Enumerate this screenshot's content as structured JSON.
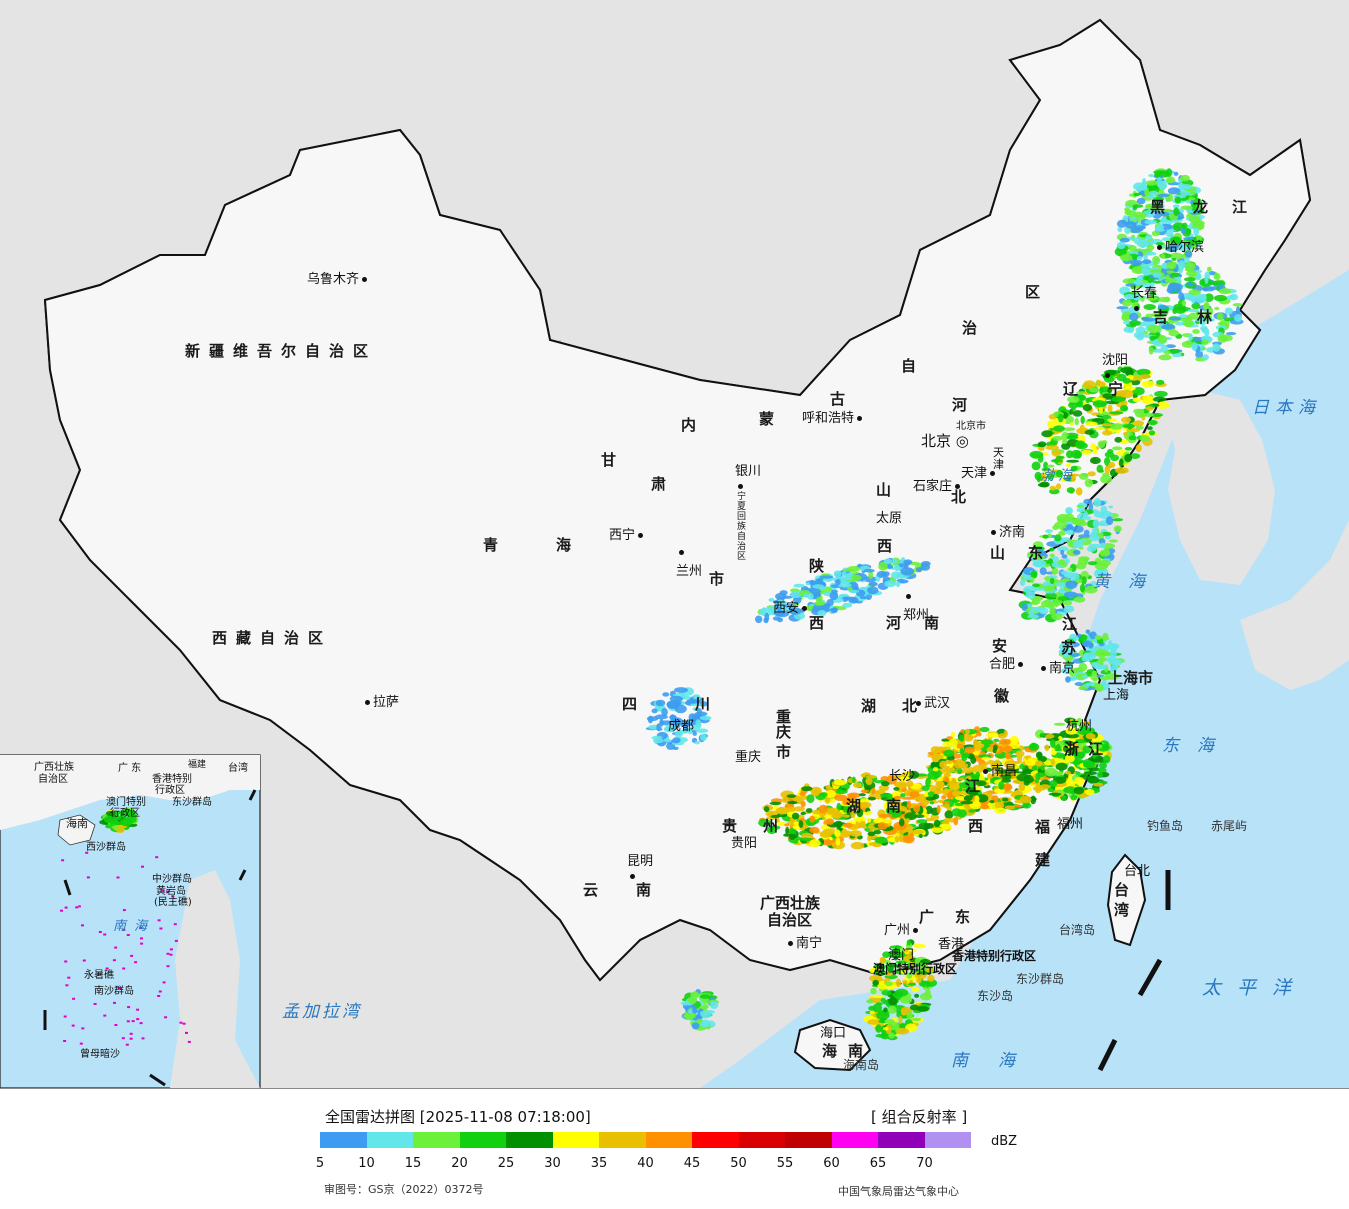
{
  "map": {
    "colors": {
      "ocean": "#b8e2f8",
      "land_outside": "#e4e4e4",
      "land_china": "#f7f7f7",
      "border": "#111111",
      "river": "#3aa0e0"
    },
    "provinces": [
      {
        "id": "xinjiang",
        "label": "新疆维吾尔自治区"
      },
      {
        "id": "tibet",
        "label": "西藏自治区"
      },
      {
        "id": "qinghai-1",
        "label": "青"
      },
      {
        "id": "qinghai-2",
        "label": "海"
      },
      {
        "id": "gansu-1",
        "label": "甘"
      },
      {
        "id": "gansu-2",
        "label": "肃"
      },
      {
        "id": "inner-mongolia-1",
        "label": "内"
      },
      {
        "id": "inner-mongolia-2",
        "label": "蒙"
      },
      {
        "id": "inner-mongolia-3",
        "label": "古"
      },
      {
        "id": "inner-mongolia-4",
        "label": "自"
      },
      {
        "id": "inner-mongolia-5",
        "label": "治"
      },
      {
        "id": "inner-mongolia-6",
        "label": "区"
      },
      {
        "id": "heilongjiang-1",
        "label": "黑"
      },
      {
        "id": "heilongjiang-2",
        "label": "龙"
      },
      {
        "id": "heilongjiang-3",
        "label": "江"
      },
      {
        "id": "jilin-1",
        "label": "吉"
      },
      {
        "id": "jilin-2",
        "label": "林"
      },
      {
        "id": "liaoning-1",
        "label": "辽"
      },
      {
        "id": "liaoning-2",
        "label": "宁"
      },
      {
        "id": "hebei-1",
        "label": "河"
      },
      {
        "id": "hebei-2",
        "label": "北"
      },
      {
        "id": "shanxi-1",
        "label": "山"
      },
      {
        "id": "shanxi-2",
        "label": "西"
      },
      {
        "id": "shaanxi-1",
        "label": "陕"
      },
      {
        "id": "shaanxi-2",
        "label": "西"
      },
      {
        "id": "ningxia",
        "label": "宁夏回族自治区"
      },
      {
        "id": "shandong-1",
        "label": "山"
      },
      {
        "id": "shandong-2",
        "label": "东"
      },
      {
        "id": "henan-1",
        "label": "河"
      },
      {
        "id": "henan-2",
        "label": "南"
      },
      {
        "id": "jiangsu-1",
        "label": "江"
      },
      {
        "id": "jiangsu-2",
        "label": "苏"
      },
      {
        "id": "anhui-1",
        "label": "安"
      },
      {
        "id": "anhui-2",
        "label": "徽"
      },
      {
        "id": "hubei-1",
        "label": "湖"
      },
      {
        "id": "hubei-2",
        "label": "北"
      },
      {
        "id": "sichuan-1",
        "label": "四"
      },
      {
        "id": "sichuan-2",
        "label": "川"
      },
      {
        "id": "chongqing-1",
        "label": "重"
      },
      {
        "id": "chongqing-2",
        "label": "庆"
      },
      {
        "id": "chongqing-3",
        "label": "市"
      },
      {
        "id": "zhejiang-1",
        "label": "浙"
      },
      {
        "id": "zhejiang-2",
        "label": "江"
      },
      {
        "id": "hunan-1",
        "label": "湖"
      },
      {
        "id": "hunan-2",
        "label": "南"
      },
      {
        "id": "jiangxi-1",
        "label": "江"
      },
      {
        "id": "jiangxi-2",
        "label": "西"
      },
      {
        "id": "guizhou-1",
        "label": "贵"
      },
      {
        "id": "guizhou-2",
        "label": "州"
      },
      {
        "id": "fujian-1",
        "label": "福"
      },
      {
        "id": "fujian-2",
        "label": "建"
      },
      {
        "id": "yunnan-1",
        "label": "云"
      },
      {
        "id": "yunnan-2",
        "label": "南"
      },
      {
        "id": "guangxi-1",
        "label": "广西壮族"
      },
      {
        "id": "guangxi-2",
        "label": "自治区"
      },
      {
        "id": "guangdong-1",
        "label": "广"
      },
      {
        "id": "guangdong-2",
        "label": "东"
      },
      {
        "id": "taiwan-1",
        "label": "台"
      },
      {
        "id": "taiwan-2",
        "label": "湾"
      },
      {
        "id": "hainan-1",
        "label": "海"
      },
      {
        "id": "hainan-2",
        "label": "南"
      },
      {
        "id": "gansu-3",
        "label": "市"
      },
      {
        "id": "shanghai",
        "label": "上海市"
      },
      {
        "id": "tianjin",
        "label": "天津"
      },
      {
        "id": "beijing-city",
        "label": "北京市"
      },
      {
        "id": "hongkong",
        "label": "香港特别行政区"
      },
      {
        "id": "macau",
        "label": "澳门特别行政区"
      }
    ],
    "cities": [
      {
        "id": "urumqi",
        "label": "乌鲁木齐"
      },
      {
        "id": "lhasa",
        "label": "拉萨"
      },
      {
        "id": "xining",
        "label": "西宁"
      },
      {
        "id": "lanzhou",
        "label": "兰州"
      },
      {
        "id": "yinchuan",
        "label": "银川"
      },
      {
        "id": "hohhot",
        "label": "呼和浩特"
      },
      {
        "id": "harbin",
        "label": "哈尔滨"
      },
      {
        "id": "changchun",
        "label": "长春"
      },
      {
        "id": "shenyang",
        "label": "沈阳"
      },
      {
        "id": "beijing",
        "label": "北京"
      },
      {
        "id": "tianjin",
        "label": "天津"
      },
      {
        "id": "shijiazhuang",
        "label": "石家庄"
      },
      {
        "id": "taiyuan",
        "label": "太原"
      },
      {
        "id": "jinan",
        "label": "济南"
      },
      {
        "id": "zhengzhou",
        "label": "郑州"
      },
      {
        "id": "xian",
        "label": "西安"
      },
      {
        "id": "hefei",
        "label": "合肥"
      },
      {
        "id": "nanjing",
        "label": "南京"
      },
      {
        "id": "shanghai",
        "label": "上海"
      },
      {
        "id": "hangzhou",
        "label": "杭州"
      },
      {
        "id": "wuhan",
        "label": "武汉"
      },
      {
        "id": "chengdu",
        "label": "成都"
      },
      {
        "id": "chongqing",
        "label": "重庆"
      },
      {
        "id": "nanchang",
        "label": "南昌"
      },
      {
        "id": "changsha",
        "label": "长沙"
      },
      {
        "id": "guiyang",
        "label": "贵阳"
      },
      {
        "id": "fuzhou",
        "label": "福州"
      },
      {
        "id": "taipei",
        "label": "台北"
      },
      {
        "id": "kunming",
        "label": "昆明"
      },
      {
        "id": "nanning",
        "label": "南宁"
      },
      {
        "id": "guangzhou",
        "label": "广州"
      },
      {
        "id": "hongkong",
        "label": "香港"
      },
      {
        "id": "macau",
        "label": "澳门"
      },
      {
        "id": "haikou",
        "label": "海口"
      }
    ],
    "seas": [
      {
        "id": "sea-of-japan",
        "label": "日本海"
      },
      {
        "id": "bohai",
        "label": "渤海"
      },
      {
        "id": "yellow-sea",
        "label": "黄海"
      },
      {
        "id": "east-china-sea",
        "label": "东海"
      },
      {
        "id": "pacific",
        "label": "太平洋"
      },
      {
        "id": "south-china-sea",
        "label": "南海"
      },
      {
        "id": "bay-of-bengal",
        "label": "孟加拉湾"
      }
    ],
    "islands": [
      {
        "id": "diaoyu",
        "label": "钓鱼岛"
      },
      {
        "id": "chiwei",
        "label": "赤尾屿"
      },
      {
        "id": "taiwan-island",
        "label": "台湾岛"
      },
      {
        "id": "dongsha-islands",
        "label": "东沙群岛"
      },
      {
        "id": "dongsha-island",
        "label": "东沙岛"
      },
      {
        "id": "hainan-island",
        "label": "海南岛"
      }
    ],
    "inset": {
      "labels": [
        {
          "id": "inset-guangxi",
          "label": "广西壮族"
        },
        {
          "id": "inset-guangxi-2",
          "label": "自治区"
        },
        {
          "id": "inset-guangdong",
          "label": "广  东"
        },
        {
          "id": "inset-fujian",
          "label": "福建"
        },
        {
          "id": "inset-taiwan",
          "label": "台湾"
        },
        {
          "id": "inset-hk",
          "label": "香港特别"
        },
        {
          "id": "inset-hk-2",
          "label": "行政区"
        },
        {
          "id": "inset-macau",
          "label": "澳门特别"
        },
        {
          "id": "inset-macau-2",
          "label": "行政区"
        },
        {
          "id": "inset-dongsha",
          "label": "东沙群岛"
        },
        {
          "id": "inset-hainan",
          "label": "海南"
        },
        {
          "id": "inset-xisha",
          "label": "西沙群岛"
        },
        {
          "id": "inset-zhongsha",
          "label": "中沙群岛"
        },
        {
          "id": "inset-huangyan",
          "label": "黄岩岛"
        },
        {
          "id": "inset-huangyan-2",
          "label": "(民主礁)"
        },
        {
          "id": "inset-sea",
          "label": "南  海"
        },
        {
          "id": "inset-yongshu",
          "label": "永暑礁"
        },
        {
          "id": "inset-nansha",
          "label": "南沙群岛"
        },
        {
          "id": "inset-zengmu",
          "label": "曾母暗沙"
        }
      ]
    }
  },
  "legend": {
    "title": "全国雷达拼图 [2025-11-08 07:18:00]",
    "product": "[ 组合反射率 ]",
    "unit": "dBZ",
    "levels": [
      5,
      10,
      15,
      20,
      25,
      30,
      35,
      40,
      45,
      50,
      55,
      60,
      65,
      70
    ],
    "colors": [
      "#3d9cf0",
      "#62e6ea",
      "#6cf03a",
      "#10d010",
      "#009000",
      "#ffff00",
      "#e8c000",
      "#ff9000",
      "#ff0000",
      "#d80000",
      "#c00000",
      "#ff00f0",
      "#9000b8",
      "#b090f0"
    ],
    "approval": "审图号：GS京（2022）0372号",
    "producer": "中国气象局雷达气象中心"
  }
}
